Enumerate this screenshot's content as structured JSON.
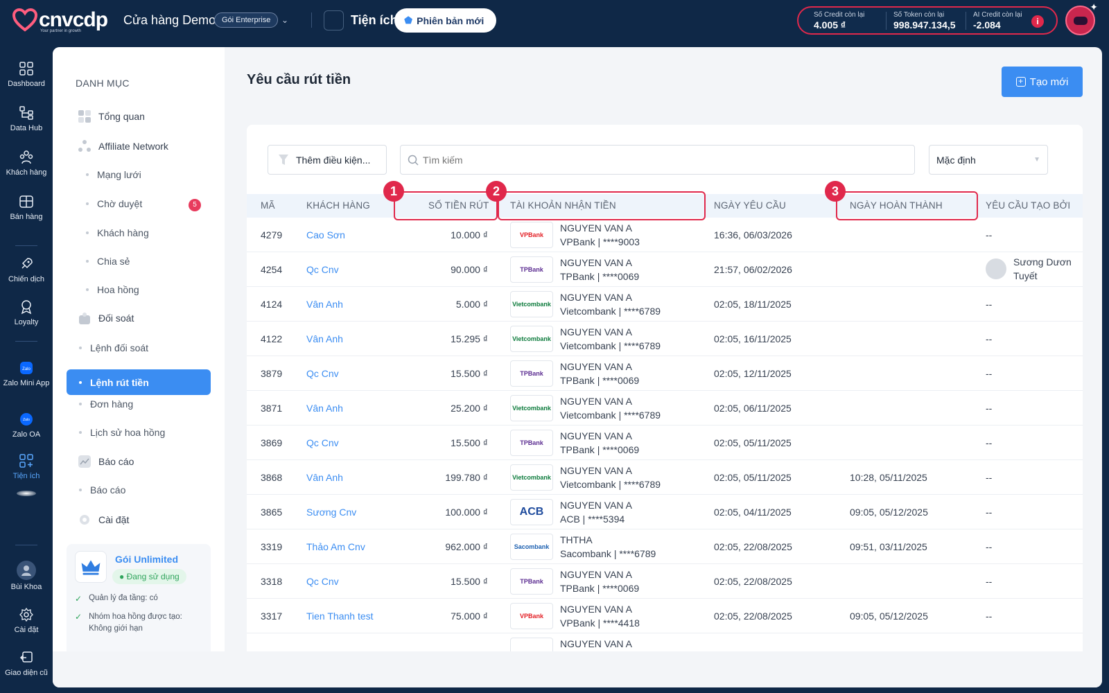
{
  "brand": {
    "name": "cnvcdp",
    "tagline": "Your partner in growth"
  },
  "header": {
    "store_name": "Cửa hàng Demo",
    "plan": "Gói Enterprise",
    "utilities": "Tiện ích",
    "new_version": "Phiên bản mới",
    "credits": [
      {
        "label": "Số Credit còn lại",
        "value": "4.005 ₫"
      },
      {
        "label": "Số Token còn lại",
        "value": "998.947.134,5"
      },
      {
        "label": "AI Credit còn lại",
        "value": "-2.084"
      }
    ]
  },
  "rail": {
    "items": [
      {
        "label": "Dashboard",
        "icon": "dashboard-icon"
      },
      {
        "label": "Data Hub",
        "icon": "data-hub-icon"
      },
      {
        "label": "Khách hàng",
        "icon": "customers-icon"
      },
      {
        "label": "Bán hàng",
        "icon": "sales-icon"
      },
      {
        "label": "Chiến dịch",
        "icon": "rocket-icon"
      },
      {
        "label": "Loyalty",
        "icon": "loyalty-icon"
      },
      {
        "label": "Zalo Mini App",
        "icon": "zalo-mini-app-icon"
      },
      {
        "label": "Zalo OA",
        "icon": "zalo-oa-icon"
      },
      {
        "label": "Tiện ích",
        "icon": "utilities-icon"
      },
      {
        "label": "Bùi Khoa",
        "icon": "user-avatar-icon"
      },
      {
        "label": "Cài đặt",
        "icon": "gear-icon"
      },
      {
        "label": "Giao diện cũ",
        "icon": "old-ui-icon"
      }
    ]
  },
  "category": {
    "title": "DANH MỤC",
    "items": {
      "overview": "Tổng quan",
      "affiliate": "Affiliate Network",
      "network": "Mạng lưới",
      "pending": "Chờ duyệt",
      "pending_count": "5",
      "customers": "Khách hàng",
      "share": "Chia sẻ",
      "commission": "Hoa hồng",
      "reconcile": "Đối soát",
      "reconcile_orders": "Lệnh đối soát",
      "withdraw_orders": "Lệnh rút tiền",
      "orders": "Đơn hàng",
      "commission_history": "Lịch sử hoa hồng",
      "reports": "Báo cáo",
      "reports_sub": "Báo cáo",
      "settings": "Cài đặt"
    },
    "plan_card": {
      "name": "Gói Unlimited",
      "status": "Đang sử dụng",
      "features": [
        "Quản lý đa tầng: có",
        "Nhóm hoa hồng được tạo: Không giới hạn"
      ]
    }
  },
  "page": {
    "title": "Yêu cầu rút tiền",
    "create_label": "Tạo mới",
    "filter_label": "Thêm điều kiện...",
    "search_placeholder": "Tìm kiếm",
    "sort_value": "Mặc định"
  },
  "table": {
    "columns": {
      "id": "MÃ",
      "customer": "KHÁCH HÀNG",
      "amount": "SỐ TIỀN RÚT",
      "account": "TÀI KHOẢN NHẬN TIỀN",
      "requested": "NGÀY YÊU CẦU",
      "completed": "NGÀY HOÀN THÀNH",
      "created_by": "YÊU CẦU TẠO BỞI"
    },
    "annotations": [
      "1",
      "2",
      "3"
    ],
    "rows": [
      {
        "id": "4279",
        "customer": "Cao Sơn",
        "amount": "10.000 ₫",
        "bank": "VPBank",
        "holder": "NGUYEN VAN A",
        "account": "VPBank | ****9003",
        "requested": "16:36, 06/03/2026",
        "completed": "",
        "created_by": "--"
      },
      {
        "id": "4254",
        "customer": "Qc Cnv",
        "amount": "90.000 ₫",
        "bank": "TPBank",
        "holder": "NGUYEN VAN A",
        "account": "TPBank | ****0069",
        "requested": "21:57, 06/02/2026",
        "completed": "",
        "created_by": "Sương Dươn",
        "created_by_2": "Tuyết"
      },
      {
        "id": "4124",
        "customer": "Vân Anh",
        "amount": "5.000 ₫",
        "bank": "Vietcombank",
        "holder": "NGUYEN VAN A",
        "account": "Vietcombank | ****6789",
        "requested": "02:05, 18/11/2025",
        "completed": "",
        "created_by": "--"
      },
      {
        "id": "4122",
        "customer": "Vân Anh",
        "amount": "15.295 ₫",
        "bank": "Vietcombank",
        "holder": "NGUYEN VAN A",
        "account": "Vietcombank | ****6789",
        "requested": "02:05, 16/11/2025",
        "completed": "",
        "created_by": "--"
      },
      {
        "id": "3879",
        "customer": "Qc Cnv",
        "amount": "15.500 ₫",
        "bank": "TPBank",
        "holder": "NGUYEN VAN A",
        "account": "TPBank | ****0069",
        "requested": "02:05, 12/11/2025",
        "completed": "",
        "created_by": "--"
      },
      {
        "id": "3871",
        "customer": "Vân Anh",
        "amount": "25.200 ₫",
        "bank": "Vietcombank",
        "holder": "NGUYEN VAN A",
        "account": "Vietcombank | ****6789",
        "requested": "02:05, 06/11/2025",
        "completed": "",
        "created_by": "--"
      },
      {
        "id": "3869",
        "customer": "Qc Cnv",
        "amount": "15.500 ₫",
        "bank": "TPBank",
        "holder": "NGUYEN VAN A",
        "account": "TPBank | ****0069",
        "requested": "02:05, 05/11/2025",
        "completed": "",
        "created_by": "--"
      },
      {
        "id": "3868",
        "customer": "Vân Anh",
        "amount": "199.780 ₫",
        "bank": "Vietcombank",
        "holder": "NGUYEN VAN A",
        "account": "Vietcombank | ****6789",
        "requested": "02:05, 05/11/2025",
        "completed": "10:28, 05/11/2025",
        "created_by": "--"
      },
      {
        "id": "3865",
        "customer": "Sương Cnv",
        "amount": "100.000 ₫",
        "bank": "ACB",
        "holder": "NGUYEN VAN A",
        "account": "ACB | ****5394",
        "requested": "02:05, 04/11/2025",
        "completed": "09:05, 05/12/2025",
        "created_by": "--"
      },
      {
        "id": "3319",
        "customer": "Thảo Am Cnv",
        "amount": "962.000 ₫",
        "bank": "Sacombank",
        "holder": "THTHA",
        "account": "Sacombank | ****6789",
        "requested": "02:05, 22/08/2025",
        "completed": "09:51, 03/11/2025",
        "created_by": "--"
      },
      {
        "id": "3318",
        "customer": "Qc Cnv",
        "amount": "15.500 ₫",
        "bank": "TPBank",
        "holder": "NGUYEN VAN A",
        "account": "TPBank | ****0069",
        "requested": "02:05, 22/08/2025",
        "completed": "",
        "created_by": "--"
      },
      {
        "id": "3317",
        "customer": "Tien Thanh test",
        "amount": "75.000 ₫",
        "bank": "VPBank",
        "holder": "NGUYEN VAN A",
        "account": "VPBank | ****4418",
        "requested": "02:05, 22/08/2025",
        "completed": "09:05, 05/12/2025",
        "created_by": "--"
      }
    ],
    "partial_row_holder": "NGUYEN VAN A"
  },
  "colors": {
    "navy": "#0f2847",
    "accent": "#3b8df2",
    "highlight": "#e0284b",
    "success": "#2ea45b"
  }
}
